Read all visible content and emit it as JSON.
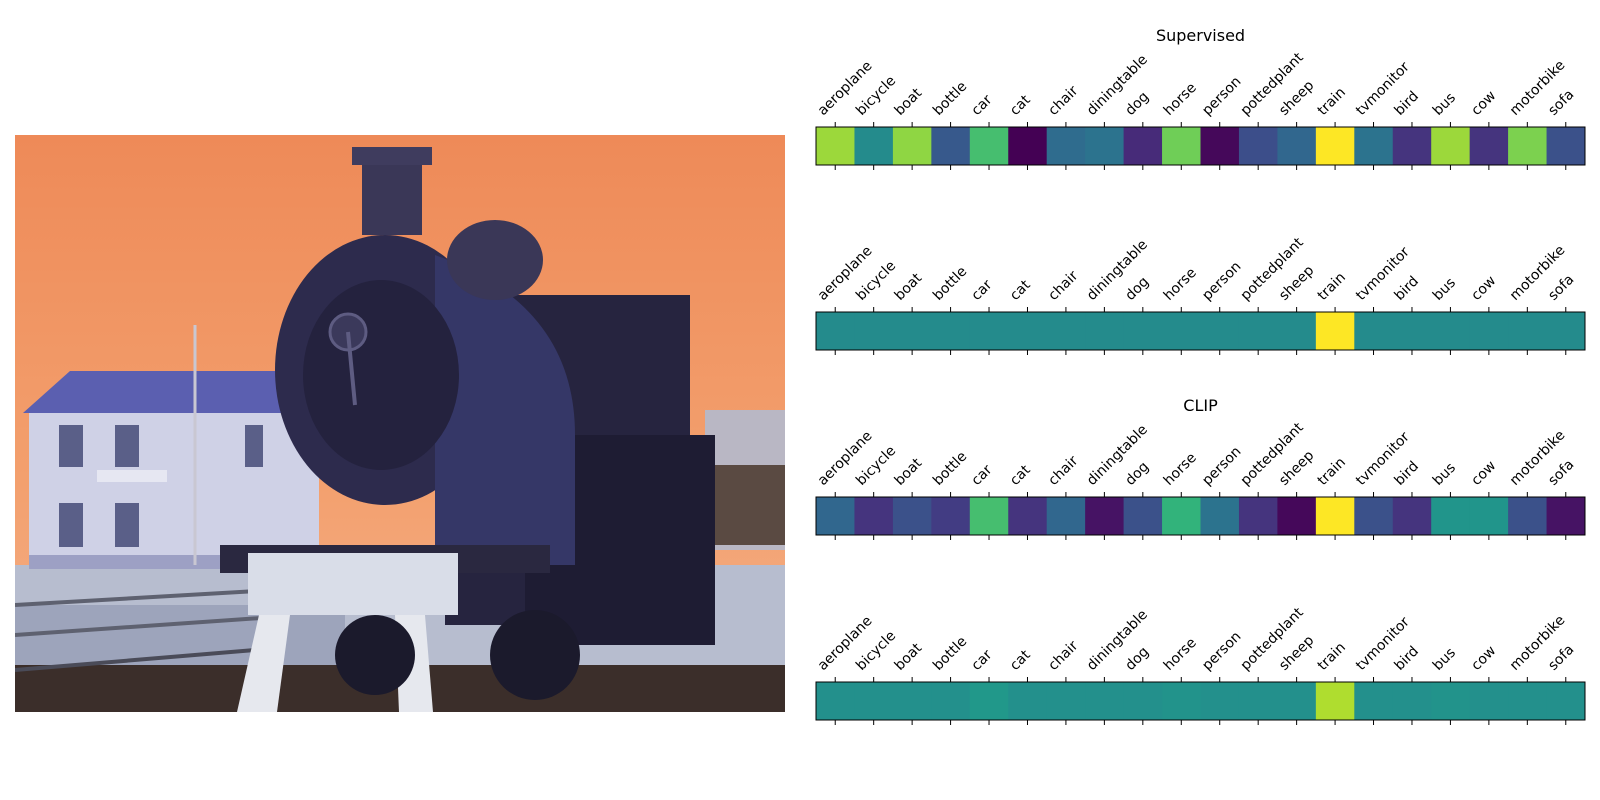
{
  "chart_data": [
    {
      "type": "heatmap",
      "title": "Supervised",
      "categories": [
        "aeroplane",
        "bicycle",
        "boat",
        "bottle",
        "car",
        "cat",
        "chair",
        "diningtable",
        "dog",
        "horse",
        "person",
        "pottedplant",
        "sheep",
        "train",
        "tvmonitor",
        "bird",
        "bus",
        "cow",
        "motorbike",
        "sofa"
      ],
      "values": [
        0.85,
        0.48,
        0.83,
        0.28,
        0.7,
        0.0,
        0.35,
        0.38,
        0.12,
        0.78,
        0.02,
        0.24,
        0.33,
        1.0,
        0.38,
        0.15,
        0.85,
        0.15,
        0.8,
        0.25
      ],
      "colormap": "viridis"
    },
    {
      "type": "heatmap",
      "title": "",
      "categories": [
        "aeroplane",
        "bicycle",
        "boat",
        "bottle",
        "car",
        "cat",
        "chair",
        "diningtable",
        "dog",
        "horse",
        "person",
        "pottedplant",
        "sheep",
        "train",
        "tvmonitor",
        "bird",
        "bus",
        "cow",
        "motorbike",
        "sofa"
      ],
      "values": [
        0.48,
        0.48,
        0.48,
        0.48,
        0.48,
        0.48,
        0.48,
        0.48,
        0.48,
        0.48,
        0.48,
        0.48,
        0.48,
        1.0,
        0.48,
        0.48,
        0.48,
        0.48,
        0.48,
        0.48
      ],
      "colormap": "viridis"
    },
    {
      "type": "heatmap",
      "title": "CLIP",
      "categories": [
        "aeroplane",
        "bicycle",
        "boat",
        "bottle",
        "car",
        "cat",
        "chair",
        "diningtable",
        "dog",
        "horse",
        "person",
        "pottedplant",
        "sheep",
        "train",
        "tvmonitor",
        "bird",
        "bus",
        "cow",
        "motorbike",
        "sofa"
      ],
      "values": [
        0.33,
        0.15,
        0.25,
        0.18,
        0.7,
        0.15,
        0.33,
        0.05,
        0.25,
        0.65,
        0.38,
        0.15,
        0.02,
        1.0,
        0.25,
        0.15,
        0.52,
        0.52,
        0.25,
        0.05
      ],
      "colormap": "viridis"
    },
    {
      "type": "heatmap",
      "title": "",
      "categories": [
        "aeroplane",
        "bicycle",
        "boat",
        "bottle",
        "car",
        "cat",
        "chair",
        "diningtable",
        "dog",
        "horse",
        "person",
        "pottedplant",
        "sheep",
        "train",
        "tvmonitor",
        "bird",
        "bus",
        "cow",
        "motorbike",
        "sofa"
      ],
      "values": [
        0.5,
        0.5,
        0.5,
        0.5,
        0.53,
        0.5,
        0.5,
        0.5,
        0.5,
        0.51,
        0.5,
        0.5,
        0.5,
        0.88,
        0.5,
        0.5,
        0.51,
        0.5,
        0.5,
        0.5
      ],
      "colormap": "viridis"
    }
  ]
}
